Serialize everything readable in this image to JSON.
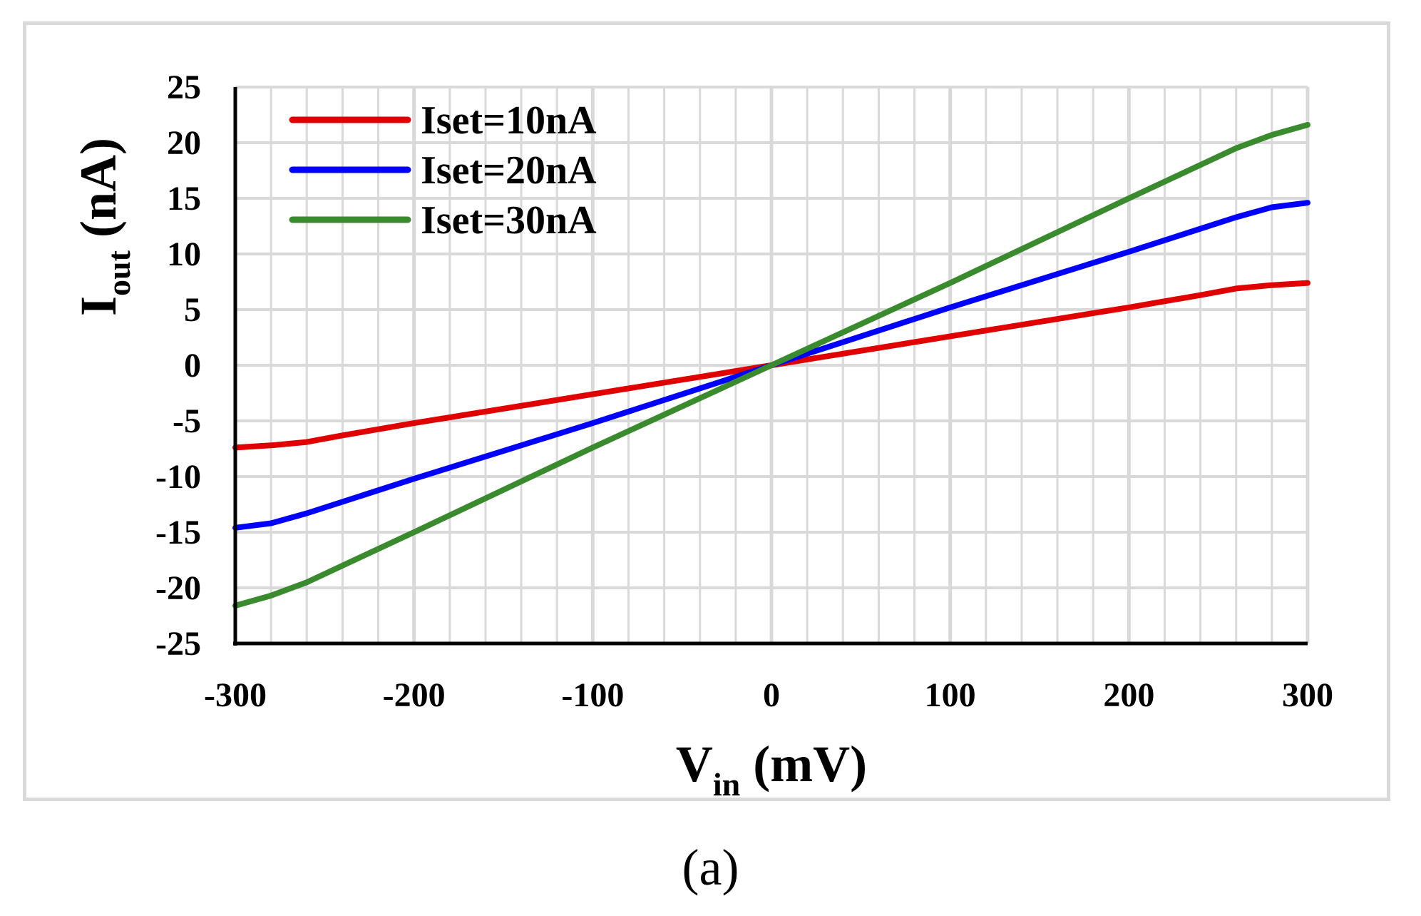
{
  "chart_data": {
    "type": "line",
    "title": "",
    "xlabel": "V",
    "xlabel_sub": "in",
    "xlabel_unit": "(mV)",
    "ylabel": "I",
    "ylabel_sub": "out",
    "ylabel_unit": "(nA)",
    "xlim": [
      -300,
      300
    ],
    "ylim": [
      -25,
      25
    ],
    "xticks": [
      -300,
      -200,
      -100,
      0,
      100,
      200,
      300
    ],
    "yticks": [
      -25,
      -20,
      -15,
      -10,
      -5,
      0,
      5,
      10,
      15,
      20,
      25
    ],
    "x_minor_step": 20,
    "y_step": 5,
    "grid": true,
    "legend_position": "top-left",
    "series": [
      {
        "name": "Iset=10nA",
        "color": "#e00000",
        "x": [
          -300,
          -280,
          -260,
          -240,
          -200,
          -100,
          0,
          100,
          200,
          240,
          260,
          280,
          300
        ],
        "y": [
          -7.4,
          -7.2,
          -6.9,
          -6.3,
          -5.2,
          -2.6,
          0,
          2.6,
          5.2,
          6.3,
          6.9,
          7.2,
          7.4
        ]
      },
      {
        "name": "Iset=20nA",
        "color": "#0000ff",
        "x": [
          -300,
          -280,
          -260,
          -200,
          -100,
          0,
          100,
          200,
          260,
          280,
          300
        ],
        "y": [
          -14.6,
          -14.2,
          -13.3,
          -10.2,
          -5.2,
          0,
          5.2,
          10.2,
          13.3,
          14.2,
          14.6
        ]
      },
      {
        "name": "Iset=30nA",
        "color": "#3a8a2e",
        "x": [
          -300,
          -280,
          -260,
          -200,
          -100,
          0,
          100,
          200,
          260,
          280,
          300
        ],
        "y": [
          -21.6,
          -20.7,
          -19.5,
          -15.0,
          -7.4,
          0,
          7.4,
          15.0,
          19.5,
          20.7,
          21.6
        ]
      }
    ]
  },
  "caption": "(a)"
}
